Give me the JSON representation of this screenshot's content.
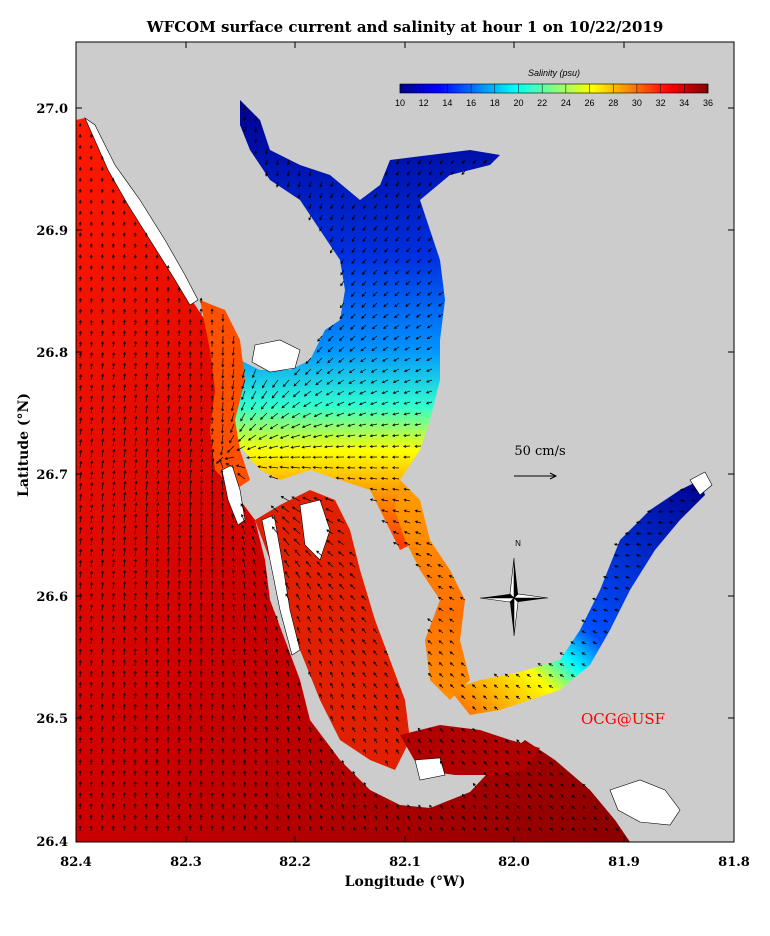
{
  "title": "WFCOM surface current and salinity at hour 1 on 10/22/2019",
  "xlabel": "Longitude (°W)",
  "ylabel": "Latitude (°N)",
  "x_ticks": [
    "82.4",
    "82.3",
    "82.2",
    "82.1",
    "82.0",
    "81.9",
    "81.8"
  ],
  "y_ticks": [
    "27.0",
    "26.9",
    "26.8",
    "26.7",
    "26.6",
    "26.5",
    "26.4"
  ],
  "colorbar": {
    "label": "Salinity (psu)",
    "ticks": [
      "10",
      "12",
      "14",
      "16",
      "18",
      "20",
      "22",
      "24",
      "26",
      "28",
      "30",
      "32",
      "34",
      "36"
    ],
    "colors": [
      "#00008f",
      "#0000ff",
      "#0080ff",
      "#00ffff",
      "#80ff80",
      "#ffff00",
      "#ff8000",
      "#ff0000",
      "#800000"
    ]
  },
  "scale_label": "50 cm/s",
  "north_label": "N",
  "credit": "OCG@USF",
  "credit_color": "#ff0000",
  "land_color": "#cccccc",
  "chart_data": {
    "type": "heatmap",
    "xlim": [
      82.4,
      81.8
    ],
    "ylim": [
      26.4,
      27.05
    ],
    "variable": "Salinity (psu)",
    "color_range": [
      10,
      36
    ],
    "vector_scale_cm_s": 50
  }
}
